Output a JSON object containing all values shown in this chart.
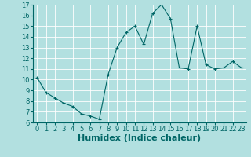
{
  "x": [
    0,
    1,
    2,
    3,
    4,
    5,
    6,
    7,
    8,
    9,
    10,
    11,
    12,
    13,
    14,
    15,
    16,
    17,
    18,
    19,
    20,
    21,
    22,
    23
  ],
  "y": [
    10.2,
    8.8,
    8.3,
    7.8,
    7.5,
    6.8,
    6.6,
    6.3,
    10.5,
    13.0,
    14.4,
    15.0,
    13.3,
    16.2,
    17.0,
    15.7,
    11.1,
    11.0,
    15.0,
    11.4,
    11.0,
    11.1,
    11.7,
    11.1
  ],
  "xlabel": "Humidex (Indice chaleur)",
  "ylim": [
    6,
    17
  ],
  "xlim": [
    -0.5,
    23.5
  ],
  "yticks": [
    6,
    7,
    8,
    9,
    10,
    11,
    12,
    13,
    14,
    15,
    16,
    17
  ],
  "xticks": [
    0,
    1,
    2,
    3,
    4,
    5,
    6,
    7,
    8,
    9,
    10,
    11,
    12,
    13,
    14,
    15,
    16,
    17,
    18,
    19,
    20,
    21,
    22,
    23
  ],
  "line_color": "#006666",
  "marker": "+",
  "bg_color": "#b2e0e0",
  "grid_color": "#ffffff",
  "tick_fontsize": 6,
  "xlabel_fontsize": 8
}
